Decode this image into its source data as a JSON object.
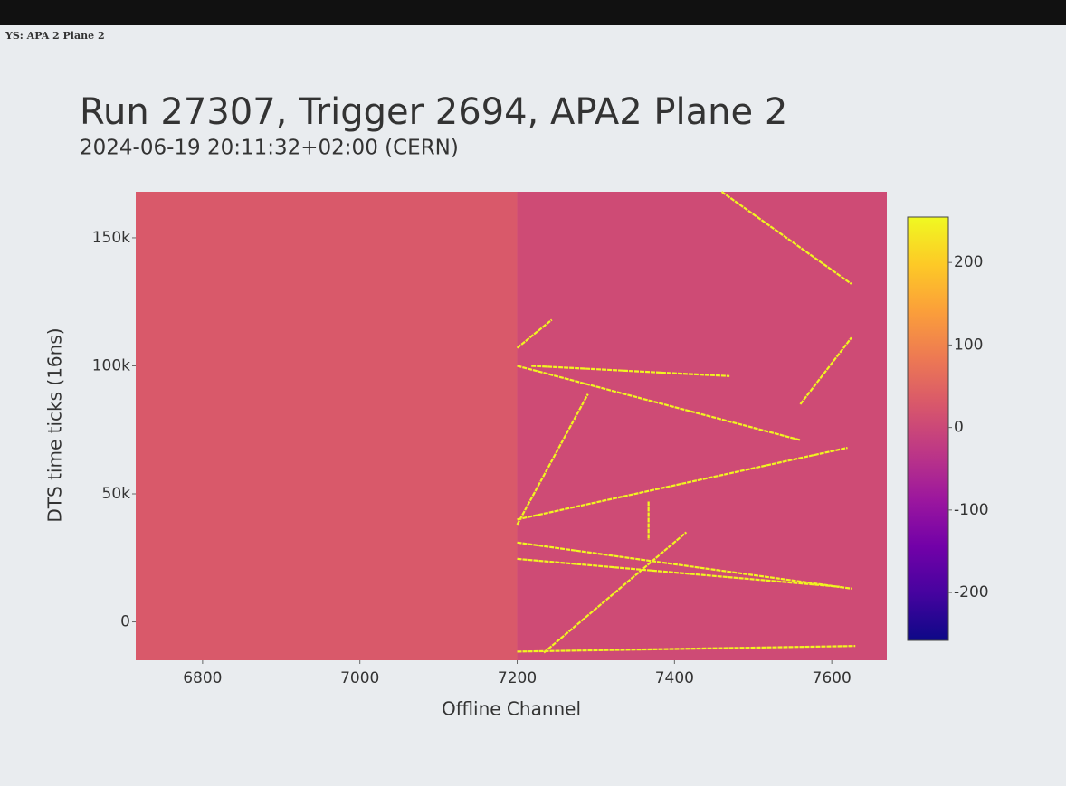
{
  "tab_label": "YS: APA 2 Plane 2",
  "chart_data": {
    "type": "heatmap",
    "title": "Run 27307, Trigger 2694, APA2 Plane 2",
    "subtitle": "2024-06-19 20:11:32+02:00 (CERN)",
    "x_label": "Offline Channel",
    "y_label": "DTS time ticks (16ns)",
    "xlim": [
      6715,
      7670
    ],
    "xticks": [
      6800,
      7000,
      7200,
      7400,
      7600
    ],
    "ylim": [
      -15000,
      168000
    ],
    "yticks": [
      0,
      {
        "value": 50000,
        "label": "50k"
      },
      {
        "value": 100000,
        "label": "100k"
      },
      {
        "value": 150000,
        "label": "150k"
      }
    ],
    "colorscale": [
      "#0d0887",
      "#46039f",
      "#7201a8",
      "#9c179e",
      "#bd3786",
      "#d8576b",
      "#ed7953",
      "#fb9f3a",
      "#fdca26",
      "#f0f921"
    ],
    "zlim": [
      -258,
      255
    ],
    "zticks": [
      -200,
      -100,
      0,
      100,
      200
    ],
    "zones": [
      {
        "x": [
          6715,
          7200
        ],
        "z": 30
      },
      {
        "x": [
          7200,
          7670
        ],
        "z": 5
      }
    ],
    "track_z": 250,
    "tracks": [
      {
        "x": [
          7200,
          7620
        ],
        "y": [
          40000,
          68000
        ]
      },
      {
        "x": [
          7200,
          7625
        ],
        "y": [
          31000,
          13000
        ]
      },
      {
        "x": [
          7200,
          7610
        ],
        "y": [
          24600,
          13700
        ]
      },
      {
        "x": [
          7234,
          7415
        ],
        "y": [
          -12000,
          35000
        ]
      },
      {
        "x": [
          7200,
          7630
        ],
        "y": [
          -11600,
          -9400
        ]
      },
      {
        "x": [
          7200,
          7560
        ],
        "y": [
          100000,
          71000
        ]
      },
      {
        "x": [
          7200,
          7290
        ],
        "y": [
          38000,
          89000
        ]
      },
      {
        "x": [
          7460,
          7625
        ],
        "y": [
          168000,
          132000
        ]
      },
      {
        "x": [
          7560,
          7625
        ],
        "y": [
          85000,
          111000
        ]
      },
      {
        "x": [
          7200,
          7244
        ],
        "y": [
          107000,
          118000
        ]
      },
      {
        "x": [
          7218,
          7470
        ],
        "y": [
          100000,
          96000
        ]
      },
      {
        "x": [
          7367,
          7367
        ],
        "y": [
          47000,
          32000
        ]
      }
    ]
  }
}
